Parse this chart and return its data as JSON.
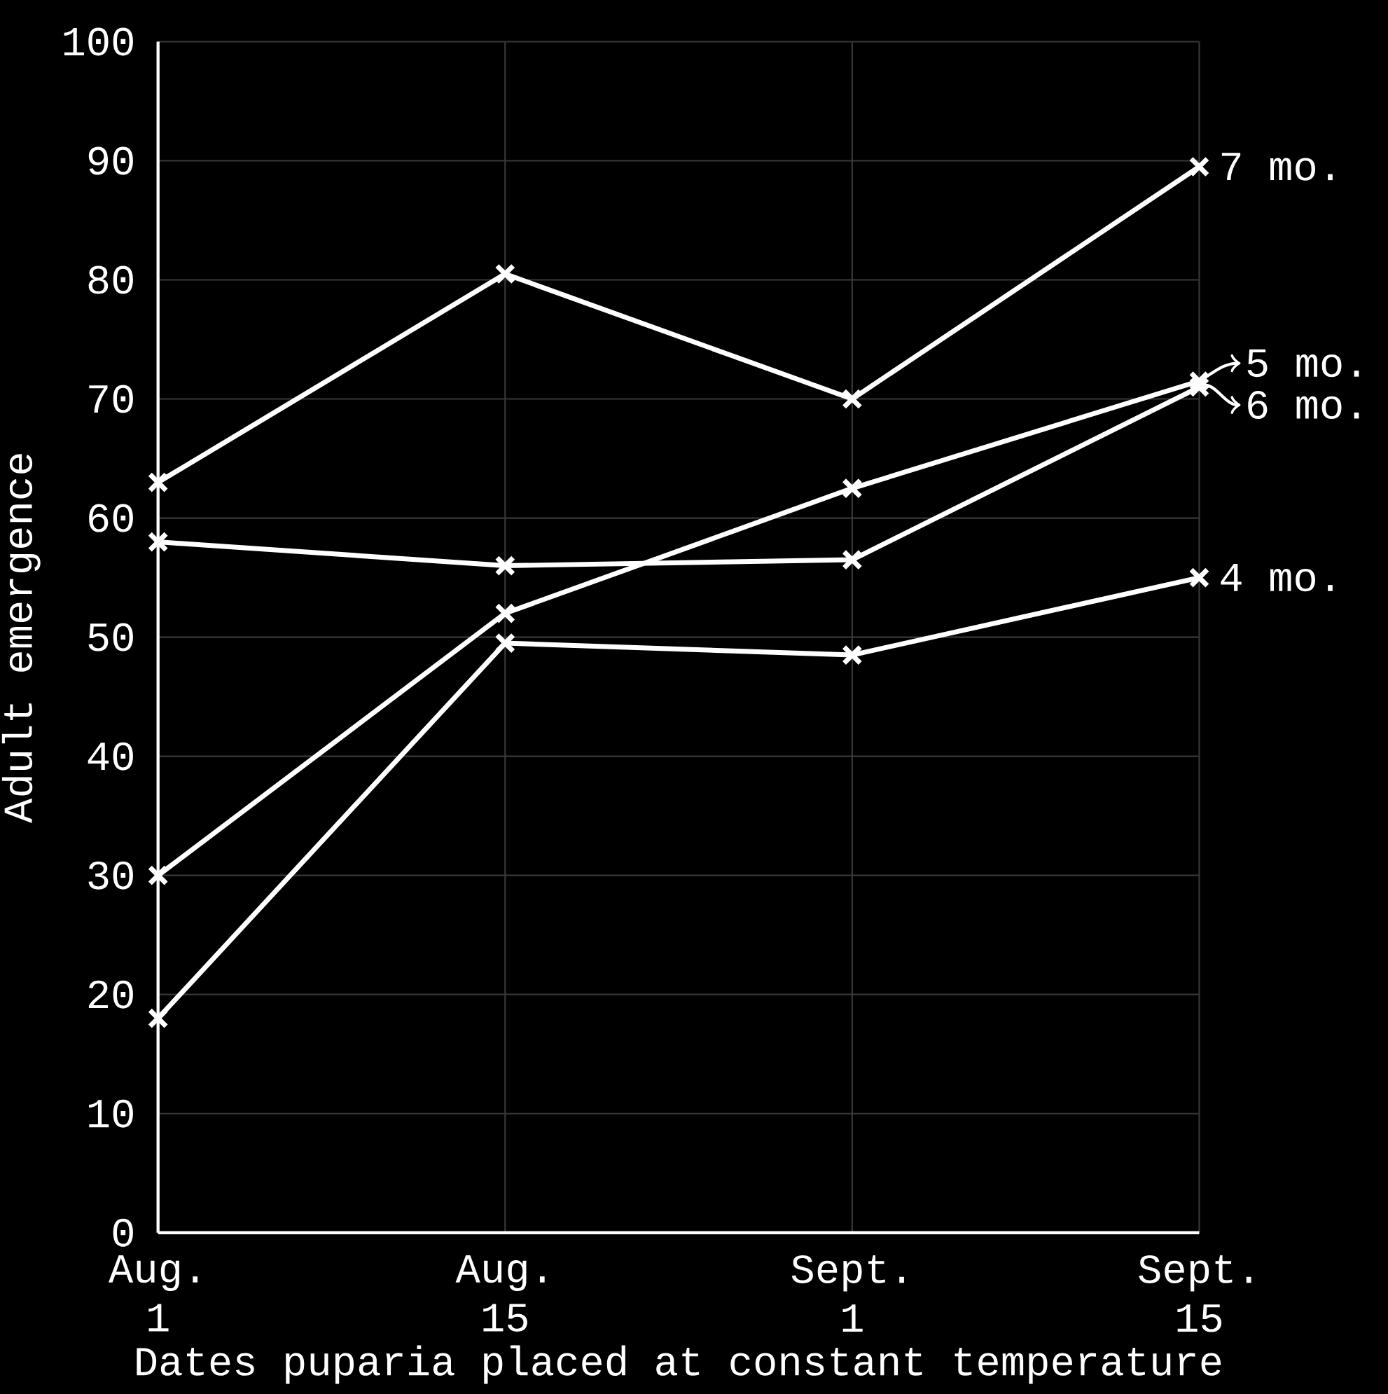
{
  "chart_data": {
    "type": "line",
    "xlabel": "Dates puparia placed at constant temperature",
    "ylabel": "Adult emergence",
    "categories": [
      "Aug. 1",
      "Aug. 15",
      "Sept. 1",
      "Sept. 15"
    ],
    "series": [
      {
        "name": "7 mo.",
        "color": "#ffffff",
        "values": [
          63,
          80.5,
          70,
          89.5
        ]
      },
      {
        "name": "5 mo.",
        "color": "#ffffff",
        "values": [
          30,
          52,
          62.5,
          71.5
        ]
      },
      {
        "name": "6 mo.",
        "color": "#ffffff",
        "values": [
          58,
          56,
          56.5,
          71
        ]
      },
      {
        "name": "4 mo.",
        "color": "#ffffff",
        "values": [
          18,
          49.5,
          48.5,
          55
        ]
      }
    ],
    "ylim": [
      0,
      100
    ],
    "yticks": [
      0,
      10,
      20,
      30,
      40,
      50,
      60,
      70,
      80,
      90,
      100
    ],
    "grid": true,
    "marker": "cross",
    "line_style": "solid",
    "legend": "right"
  }
}
